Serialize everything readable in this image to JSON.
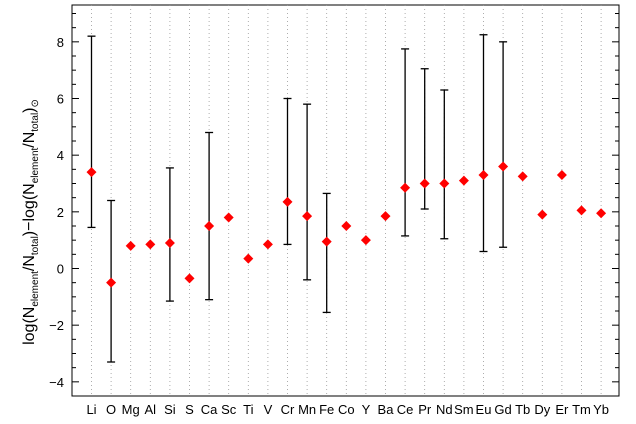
{
  "chart_data": {
    "type": "scatter",
    "title": "",
    "xlabel": "",
    "ylabel": {
      "prefix": "log(N",
      "sub1": "element",
      "mid1": "/N",
      "sub2": "total",
      "mid2": ")−log(N",
      "sub3": "element",
      "mid3": "/N",
      "sub4": "total",
      "mid4": ")",
      "sub5": "⊙"
    },
    "ylim": [
      -4.5,
      9.3
    ],
    "yticks": [
      -4,
      -2,
      0,
      2,
      4,
      6,
      8
    ],
    "grid_x": true,
    "grid_y": false,
    "marker_color": "#ff0000",
    "errorbar_color": "#000000",
    "categories": [
      "Li",
      "O",
      "Mg",
      "Al",
      "Si",
      "S",
      "Ca",
      "Sc",
      "Ti",
      "V",
      "Cr",
      "Mn",
      "Fe",
      "Co",
      "Y",
      "Ba",
      "Ce",
      "Pr",
      "Nd",
      "Sm",
      "Eu",
      "Gd",
      "Tb",
      "Dy",
      "Er",
      "Tm",
      "Yb"
    ],
    "values": [
      3.4,
      -0.5,
      0.8,
      0.85,
      0.9,
      -0.35,
      1.5,
      1.8,
      0.35,
      0.85,
      2.35,
      1.85,
      0.95,
      1.5,
      1.0,
      1.85,
      2.85,
      3.0,
      3.0,
      3.1,
      3.3,
      3.6,
      3.25,
      1.9,
      3.3,
      2.05,
      1.95
    ],
    "err_low": [
      1.45,
      -3.3,
      null,
      null,
      -1.15,
      null,
      -1.1,
      null,
      null,
      null,
      0.85,
      -0.4,
      -1.55,
      null,
      null,
      null,
      1.15,
      2.1,
      1.05,
      null,
      0.6,
      0.75,
      null,
      null,
      null,
      null,
      null
    ],
    "err_high": [
      8.2,
      2.4,
      null,
      null,
      3.55,
      null,
      4.8,
      null,
      null,
      null,
      6.0,
      5.8,
      2.65,
      null,
      null,
      null,
      7.75,
      7.05,
      6.3,
      null,
      8.25,
      8.0,
      null,
      null,
      null,
      null,
      null
    ]
  }
}
